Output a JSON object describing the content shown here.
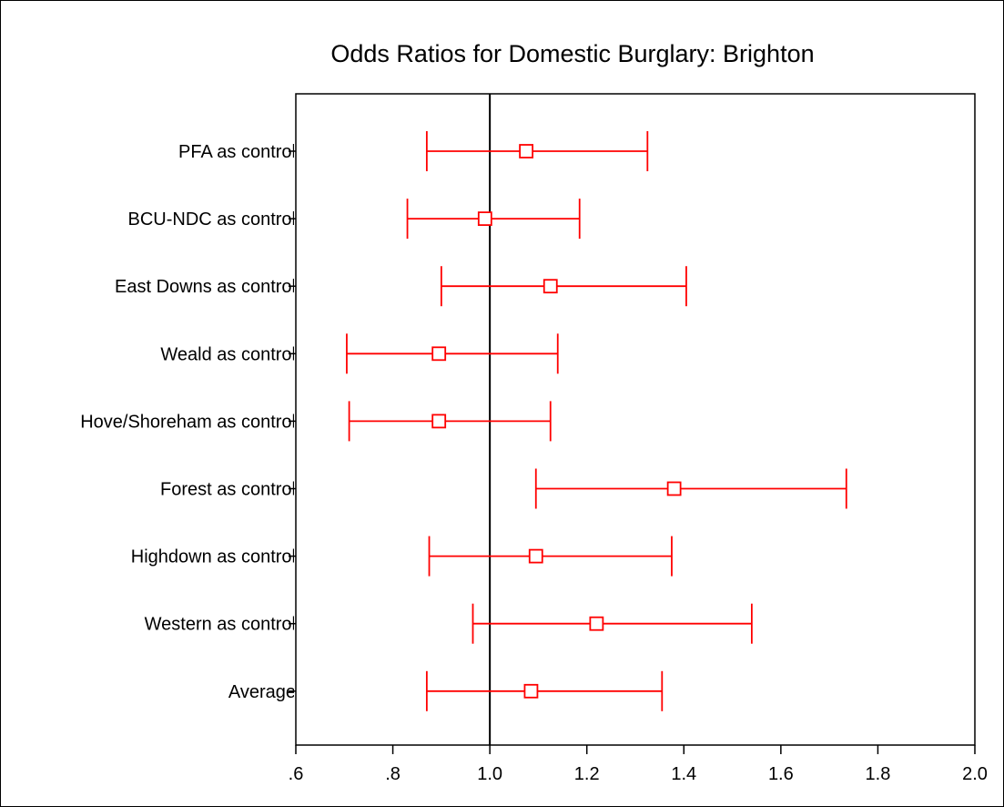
{
  "chart_data": {
    "type": "forest",
    "title": "Odds Ratios for Domestic Burglary: Brighton",
    "xlabel": "",
    "ylabel": "",
    "xlim": [
      0.6,
      2.0
    ],
    "x_ticks": [
      0.6,
      0.8,
      1.0,
      1.2,
      1.4,
      1.6,
      1.8,
      2.0
    ],
    "x_tick_labels": [
      ".6",
      ".8",
      "1.0",
      "1.2",
      "1.4",
      "1.6",
      "1.8",
      "2.0"
    ],
    "reference_line": 1.0,
    "series_color": "#ff0000",
    "rows": [
      {
        "label": "PFA as control",
        "estimate": 1.075,
        "lower": 0.87,
        "upper": 1.325
      },
      {
        "label": "BCU-NDC as control",
        "estimate": 0.99,
        "lower": 0.83,
        "upper": 1.185
      },
      {
        "label": "East Downs as control",
        "estimate": 1.125,
        "lower": 0.9,
        "upper": 1.405
      },
      {
        "label": "Weald as control",
        "estimate": 0.895,
        "lower": 0.705,
        "upper": 1.14
      },
      {
        "label": "Hove/Shoreham as control",
        "estimate": 0.895,
        "lower": 0.71,
        "upper": 1.125
      },
      {
        "label": "Forest as control",
        "estimate": 1.38,
        "lower": 1.095,
        "upper": 1.735
      },
      {
        "label": "Highdown as control",
        "estimate": 1.095,
        "lower": 0.875,
        "upper": 1.375
      },
      {
        "label": "Western as control",
        "estimate": 1.22,
        "lower": 0.965,
        "upper": 1.54
      },
      {
        "label": "Average",
        "estimate": 1.085,
        "lower": 0.87,
        "upper": 1.355
      }
    ]
  }
}
